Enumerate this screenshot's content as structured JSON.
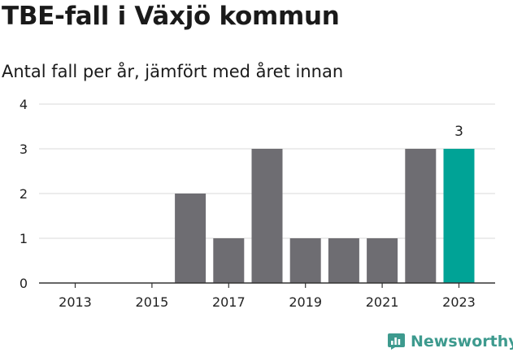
{
  "header": {
    "title": "TBE-fall i Växjö kommun",
    "subtitle": "Antal fall per år, jämfört med året innan"
  },
  "brand": {
    "name": "Newsworthy"
  },
  "colors": {
    "bar": "#6e6d72",
    "highlight": "#00a396",
    "grid": "#d9d9d9",
    "axis": "#333333",
    "brand": "#3d9a8e"
  },
  "chart_data": {
    "type": "bar",
    "categories": [
      "2013",
      "2014",
      "2015",
      "2016",
      "2017",
      "2018",
      "2019",
      "2020",
      "2021",
      "2022",
      "2023"
    ],
    "values": [
      0,
      0,
      0,
      2,
      1,
      3,
      1,
      1,
      1,
      3,
      3
    ],
    "highlight_index": 10,
    "highlight_label": "3",
    "x_tick_labels": [
      "2013",
      "2015",
      "2017",
      "2019",
      "2021",
      "2023"
    ],
    "y_ticks": [
      0,
      1,
      2,
      3,
      4
    ],
    "ylim": [
      0,
      4
    ],
    "grid": true,
    "title": "TBE-fall i Växjö kommun",
    "subtitle": "Antal fall per år, jämfört med året innan",
    "xlabel": "",
    "ylabel": ""
  }
}
